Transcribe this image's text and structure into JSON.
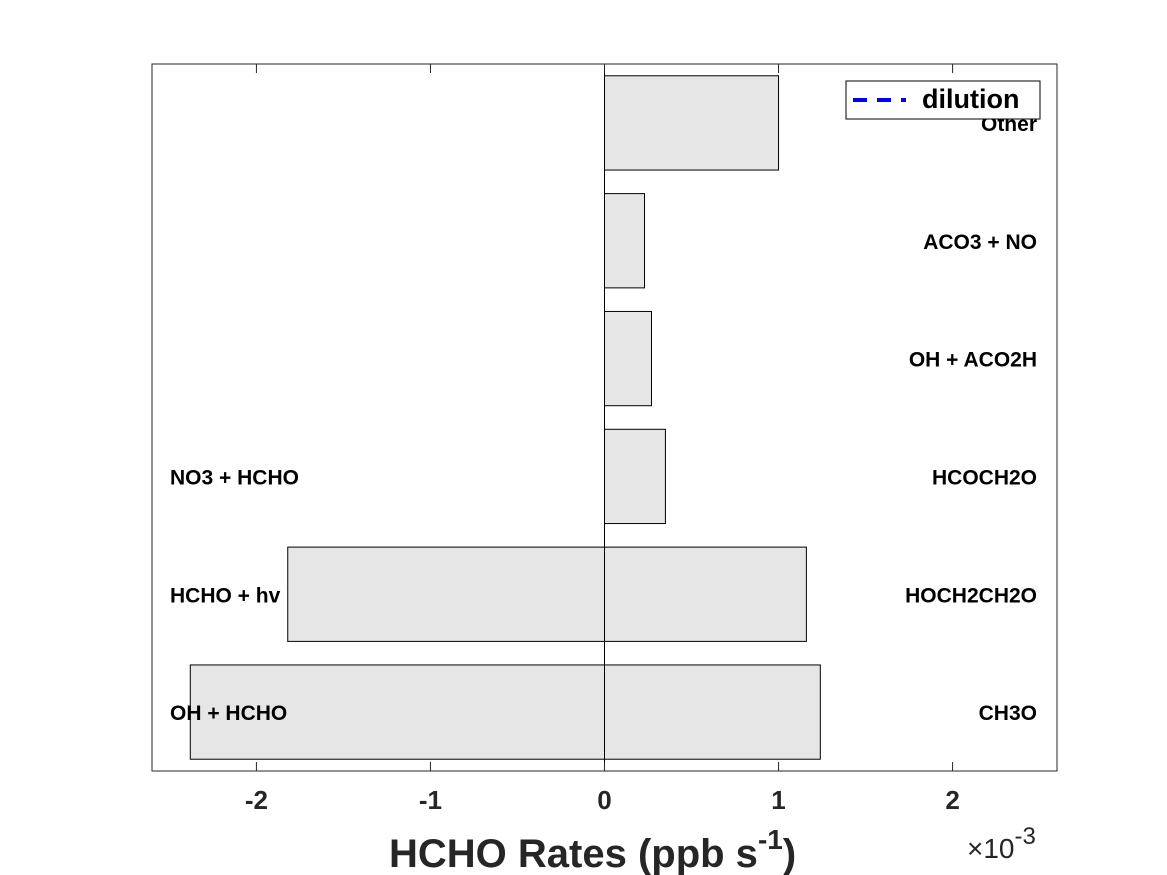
{
  "chart_data": {
    "type": "bar",
    "orientation": "horizontal",
    "title": "",
    "xlabel_main": "HCHO Rates (ppb s",
    "xlabel_exp": "-1",
    "xlabel_close": ")",
    "x_multiplier_base": "×10",
    "x_multiplier_exp": "-3",
    "xlim": [
      -2.6,
      2.6
    ],
    "xticks": [
      -2,
      -1,
      0,
      1,
      2
    ],
    "xtick_labels": [
      "-2",
      "-1",
      "0",
      "1",
      "2"
    ],
    "bar_color": "#e6e6e6",
    "legend": {
      "label": "dilution",
      "color": "#0000ff",
      "style": "dashed",
      "location": "top-right"
    },
    "rows": [
      {
        "production_label": "CH3O",
        "production": 1.24,
        "loss_label": "OH + HCHO",
        "loss": -2.38
      },
      {
        "production_label": "HOCH2CH2O",
        "production": 1.16,
        "loss_label": "HCHO + hv",
        "loss": -1.82
      },
      {
        "production_label": "HCOCH2O",
        "production": 0.35,
        "loss_label": "NO3 + HCHO",
        "loss": 0
      },
      {
        "production_label": "OH + ACO2H",
        "production": 0.27,
        "loss_label": "",
        "loss": 0
      },
      {
        "production_label": "ACO3 + NO",
        "production": 0.23,
        "loss_label": "",
        "loss": 0
      },
      {
        "production_label": "Other",
        "production": 1.0,
        "loss_label": "",
        "loss": 0
      }
    ]
  }
}
